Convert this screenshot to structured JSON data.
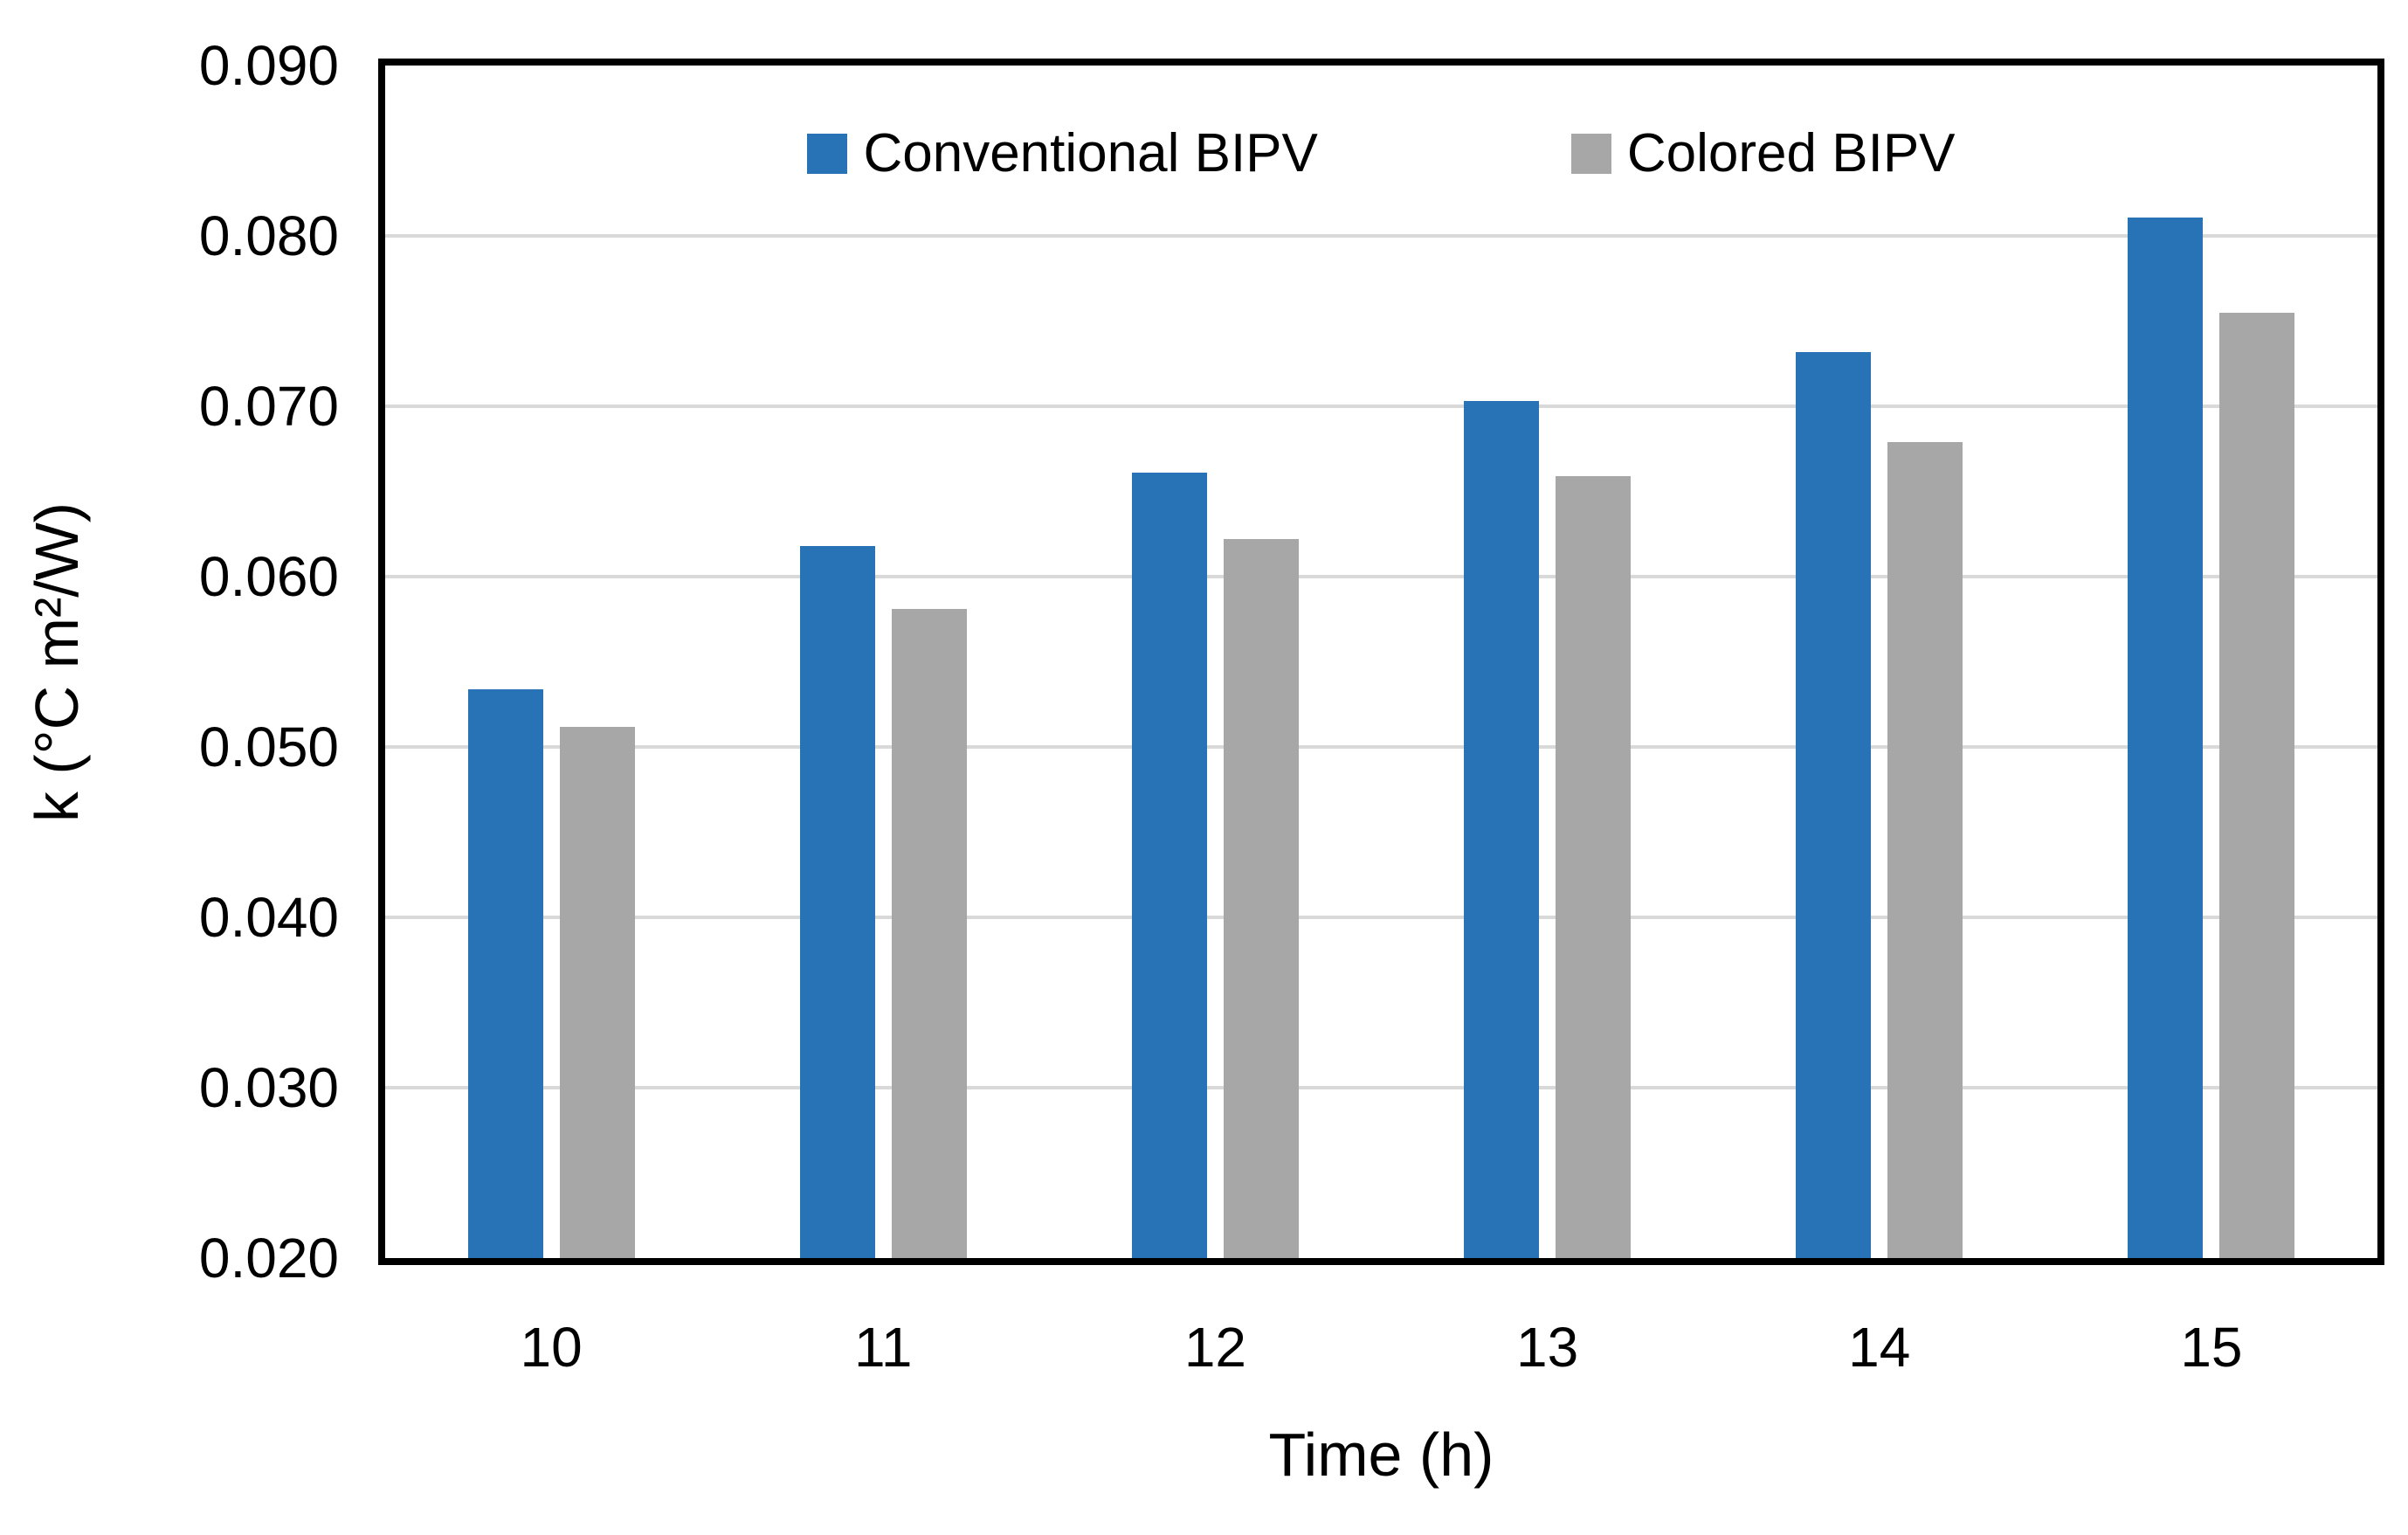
{
  "chart_data": {
    "type": "bar",
    "title": "",
    "categories": [
      "10",
      "11",
      "12",
      "13",
      "14",
      "15"
    ],
    "series": [
      {
        "name": "Conventional BIPV",
        "color": "#2773B6",
        "values": [
          0.0534,
          0.0618,
          0.0661,
          0.0703,
          0.0732,
          0.0811
        ]
      },
      {
        "name": "Colored BIPV",
        "color": "#A7A7A7",
        "values": [
          0.0512,
          0.0581,
          0.0622,
          0.0659,
          0.0679,
          0.0755
        ]
      }
    ],
    "xlabel": "Time (h)",
    "ylabel": "k (°C m²/W)",
    "ylim": [
      0.02,
      0.09
    ],
    "ytick_step": 0.01,
    "ytick_decimals": 3,
    "ytick_labels": [
      "0.020",
      "0.030",
      "0.040",
      "0.050",
      "0.060",
      "0.070",
      "0.080",
      "0.090"
    ],
    "grid": true,
    "legend_position": "top-center-inside",
    "colors": {
      "gridline": "#D9D9D9",
      "axis_border": "#000000",
      "background": "#FFFFFF",
      "text": "#000000"
    }
  }
}
